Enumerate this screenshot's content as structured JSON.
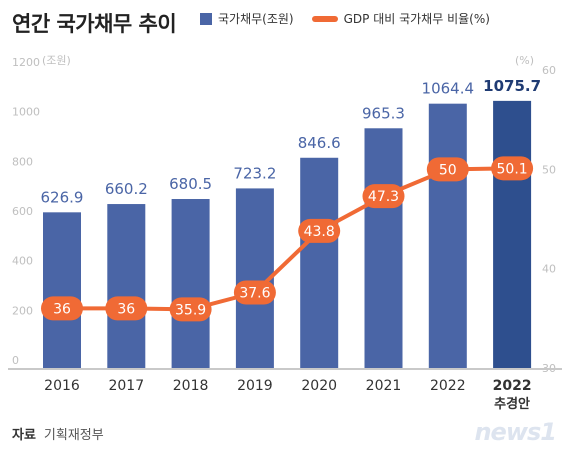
{
  "title": "연간 국가채무 추이",
  "legend": {
    "bar_label": "국가채무(조원)",
    "line_label": "GDP 대비 국가채무 비율(%)"
  },
  "source": {
    "key": "자료",
    "value": "기획재정부"
  },
  "logo_text": "news1",
  "colors": {
    "bar": "#4a65a6",
    "bar_highlight": "#2e4f8e",
    "line": "#f06a35",
    "axis_text": "#bfbfbf"
  },
  "chart_data": {
    "type": "bar",
    "categories": [
      {
        "year": "2016",
        "note": ""
      },
      {
        "year": "2017",
        "note": ""
      },
      {
        "year": "2018",
        "note": ""
      },
      {
        "year": "2019",
        "note": ""
      },
      {
        "year": "2020",
        "note": ""
      },
      {
        "year": "2021",
        "note": ""
      },
      {
        "year": "2022",
        "note": ""
      },
      {
        "year": "2022",
        "note": "추경안"
      }
    ],
    "series": [
      {
        "name": "국가채무(조원)",
        "type": "bar",
        "axis": "left",
        "values": [
          626.9,
          660.2,
          680.5,
          723.2,
          846.6,
          965.3,
          1064.4,
          1075.7
        ],
        "labels": [
          "626.9",
          "660.2",
          "680.5",
          "723.2",
          "846.6",
          "965.3",
          "1064.4",
          "1075.7"
        ]
      },
      {
        "name": "GDP 대비 국가채무 비율(%)",
        "type": "line",
        "axis": "right",
        "values": [
          36,
          36,
          35.9,
          37.6,
          43.8,
          47.3,
          50,
          50.1
        ],
        "labels": [
          "36",
          "36",
          "35.9",
          "37.6",
          "43.8",
          "47.3",
          "50",
          "50.1"
        ]
      }
    ],
    "left_axis": {
      "unit": "(조원)",
      "ylim": [
        0,
        1200
      ],
      "ticks": [
        {
          "value": 0,
          "label": "0"
        },
        {
          "value": 200,
          "label": "200"
        },
        {
          "value": 400,
          "label": "400"
        },
        {
          "value": 600,
          "label": "600"
        },
        {
          "value": 800,
          "label": "800"
        },
        {
          "value": 1000,
          "label": "1000"
        },
        {
          "value": 1200,
          "label": "1200"
        }
      ]
    },
    "right_axis": {
      "unit": "(%)",
      "ylim": [
        30,
        60
      ],
      "ticks": [
        {
          "value": 30,
          "label": "30"
        },
        {
          "value": 40,
          "label": "40"
        },
        {
          "value": 50,
          "label": "50"
        },
        {
          "value": 60,
          "label": "60"
        }
      ]
    },
    "highlight_index": 7,
    "grid": false,
    "legend_position": "top"
  }
}
